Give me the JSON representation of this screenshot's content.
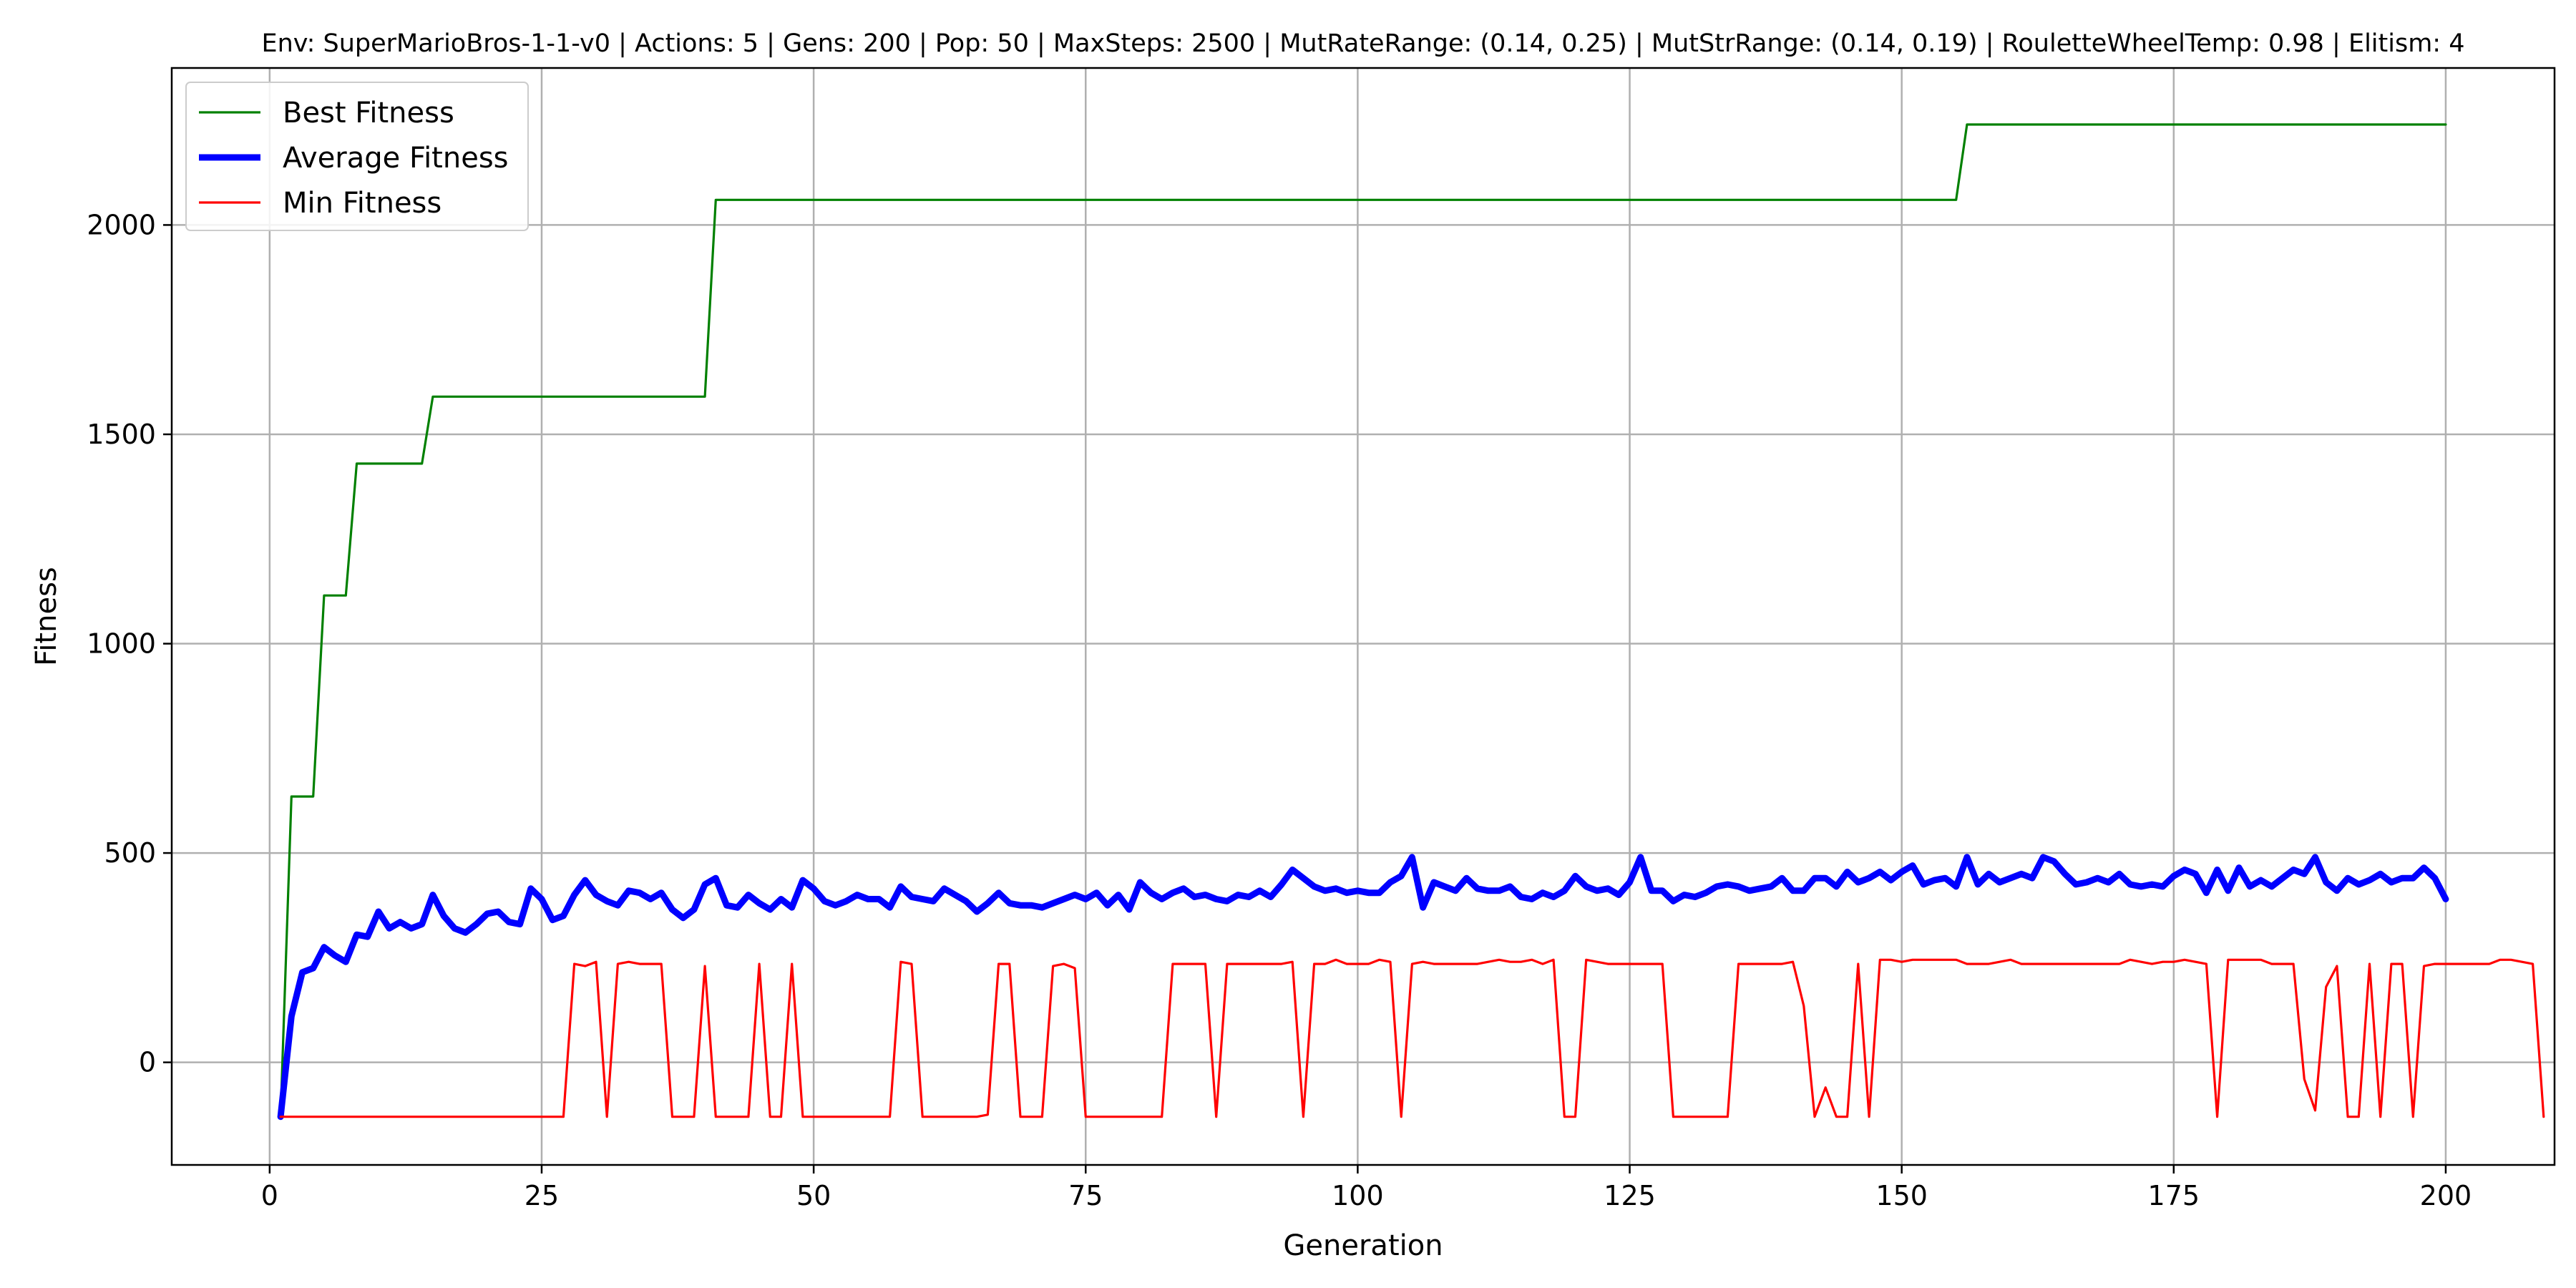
{
  "chart_data": {
    "type": "line",
    "title": "Env: SuperMarioBros-1-1-v0 | Actions: 5 | Gens: 200 | Pop: 50 | MaxSteps: 2500 | MutRateRange: (0.14, 0.25) | MutStrRange: (0.14, 0.19) | RouletteWheelTemp: 0.98 | Elitism: 4",
    "xlabel": "Generation",
    "ylabel": "Fitness",
    "xlim": [
      -9,
      210
    ],
    "ylim": [
      -245,
      2375
    ],
    "xticks": [
      0,
      25,
      50,
      75,
      100,
      125,
      150,
      175,
      200
    ],
    "yticks": [
      0,
      500,
      1000,
      1500,
      2000
    ],
    "grid": true,
    "legend_position": "upper-left",
    "x_start": 1,
    "series": [
      {
        "name": "Best Fitness",
        "color": "#008000",
        "width": "thin",
        "values": [
          -130,
          635,
          635,
          635,
          1115,
          1115,
          1115,
          1430,
          1430,
          1430,
          1430,
          1430,
          1430,
          1430,
          1590,
          1590,
          1590,
          1590,
          1590,
          1590,
          1590,
          1590,
          1590,
          1590,
          1590,
          1590,
          1590,
          1590,
          1590,
          1590,
          1590,
          1590,
          1590,
          1590,
          1590,
          1590,
          1590,
          1590,
          1590,
          1590,
          2060,
          2060,
          2060,
          2060,
          2060,
          2060,
          2060,
          2060,
          2060,
          2060,
          2060,
          2060,
          2060,
          2060,
          2060,
          2060,
          2060,
          2060,
          2060,
          2060,
          2060,
          2060,
          2060,
          2060,
          2060,
          2060,
          2060,
          2060,
          2060,
          2060,
          2060,
          2060,
          2060,
          2060,
          2060,
          2060,
          2060,
          2060,
          2060,
          2060,
          2060,
          2060,
          2060,
          2060,
          2060,
          2060,
          2060,
          2060,
          2060,
          2060,
          2060,
          2060,
          2060,
          2060,
          2060,
          2060,
          2060,
          2060,
          2060,
          2060,
          2060,
          2060,
          2060,
          2060,
          2060,
          2060,
          2060,
          2060,
          2060,
          2060,
          2060,
          2060,
          2060,
          2060,
          2060,
          2060,
          2060,
          2060,
          2060,
          2060,
          2060,
          2060,
          2060,
          2060,
          2060,
          2060,
          2060,
          2060,
          2060,
          2060,
          2060,
          2060,
          2060,
          2060,
          2060,
          2060,
          2060,
          2060,
          2060,
          2060,
          2060,
          2060,
          2060,
          2060,
          2060,
          2060,
          2060,
          2060,
          2060,
          2060,
          2060,
          2060,
          2060,
          2060,
          2060,
          2240,
          2240,
          2240,
          2240,
          2240,
          2240,
          2240,
          2240,
          2240,
          2240,
          2240,
          2240,
          2240,
          2240,
          2240,
          2240,
          2240,
          2240,
          2240,
          2240,
          2240,
          2240,
          2240,
          2240,
          2240,
          2240,
          2240,
          2240,
          2240,
          2240,
          2240,
          2240,
          2240,
          2240,
          2240,
          2240,
          2240,
          2240,
          2240,
          2240,
          2240,
          2240,
          2240,
          2240,
          2240
        ]
      },
      {
        "name": "Average Fitness",
        "color": "#0000ff",
        "width": "thick",
        "values": [
          -130,
          110,
          215,
          225,
          275,
          255,
          240,
          305,
          300,
          360,
          320,
          335,
          320,
          330,
          400,
          350,
          320,
          310,
          330,
          355,
          360,
          335,
          330,
          415,
          390,
          340,
          350,
          400,
          435,
          400,
          385,
          375,
          410,
          405,
          390,
          405,
          365,
          345,
          365,
          425,
          440,
          375,
          370,
          400,
          380,
          365,
          390,
          370,
          435,
          415,
          385,
          375,
          385,
          400,
          390,
          390,
          370,
          420,
          395,
          390,
          385,
          415,
          400,
          385,
          360,
          380,
          405,
          380,
          375,
          375,
          370,
          380,
          390,
          400,
          390,
          405,
          375,
          400,
          365,
          430,
          405,
          390,
          405,
          415,
          395,
          400,
          390,
          385,
          400,
          395,
          410,
          395,
          425,
          460,
          440,
          420,
          410,
          415,
          405,
          410,
          405,
          405,
          430,
          445,
          490,
          370,
          430,
          420,
          410,
          440,
          415,
          410,
          410,
          420,
          395,
          390,
          405,
          395,
          410,
          445,
          420,
          410,
          415,
          400,
          430,
          490,
          410,
          410,
          385,
          400,
          395,
          405,
          420,
          425,
          420,
          410,
          415,
          420,
          440,
          410,
          410,
          440,
          440,
          420,
          455,
          430,
          440,
          455,
          435,
          455,
          470,
          425,
          435,
          440,
          420,
          490,
          425,
          450,
          430,
          440,
          450,
          440,
          490,
          480,
          450,
          425,
          430,
          440,
          430,
          450,
          425,
          420,
          425,
          420,
          445,
          460,
          450,
          405,
          460,
          410,
          465,
          420,
          435,
          420,
          440,
          460,
          450,
          490,
          430,
          410,
          440,
          425,
          435,
          450,
          430,
          440,
          440,
          465,
          440,
          390
        ]
      },
      {
        "name": "Min Fitness",
        "color": "#ff0000",
        "width": "thin",
        "values": [
          -130,
          -130,
          -130,
          -130,
          -130,
          -130,
          -130,
          -130,
          -130,
          -130,
          -130,
          -130,
          -130,
          -130,
          -130,
          -130,
          -130,
          -130,
          -130,
          -130,
          -130,
          -130,
          -130,
          -130,
          -130,
          -130,
          -130,
          235,
          230,
          240,
          -130,
          235,
          240,
          235,
          235,
          235,
          -130,
          -130,
          -130,
          230,
          -130,
          -130,
          -130,
          -130,
          235,
          -130,
          -130,
          235,
          -130,
          -130,
          -130,
          -130,
          -130,
          -130,
          -130,
          -130,
          -130,
          240,
          235,
          -130,
          -130,
          -130,
          -130,
          -130,
          -130,
          -125,
          235,
          235,
          -130,
          -130,
          -130,
          230,
          235,
          225,
          -130,
          -130,
          -130,
          -130,
          -130,
          -130,
          -130,
          -130,
          235,
          235,
          235,
          235,
          -130,
          235,
          235,
          235,
          235,
          235,
          235,
          240,
          -130,
          235,
          235,
          245,
          235,
          235,
          235,
          245,
          240,
          -130,
          235,
          240,
          235,
          235,
          235,
          235,
          235,
          240,
          245,
          240,
          240,
          245,
          235,
          245,
          -130,
          -130,
          245,
          240,
          235,
          235,
          235,
          235,
          235,
          235,
          -130,
          -130,
          -130,
          -130,
          -130,
          -130,
          235,
          235,
          235,
          235,
          235,
          240,
          135,
          -130,
          -60,
          -130,
          -130,
          235,
          -130,
          245,
          245,
          240,
          245,
          245,
          245,
          245,
          245,
          235,
          235,
          235,
          240,
          245,
          235,
          235,
          235,
          235,
          235,
          235,
          235,
          235,
          235,
          235,
          245,
          240,
          235,
          240,
          240,
          245,
          240,
          235,
          -130,
          245,
          245,
          245,
          245,
          235,
          235,
          235,
          -40,
          -115,
          180,
          230,
          -130,
          -130,
          235,
          -130,
          235,
          235,
          -130,
          230,
          235,
          235,
          235,
          235,
          235,
          235,
          245,
          245,
          240,
          235,
          -130
        ]
      }
    ]
  }
}
